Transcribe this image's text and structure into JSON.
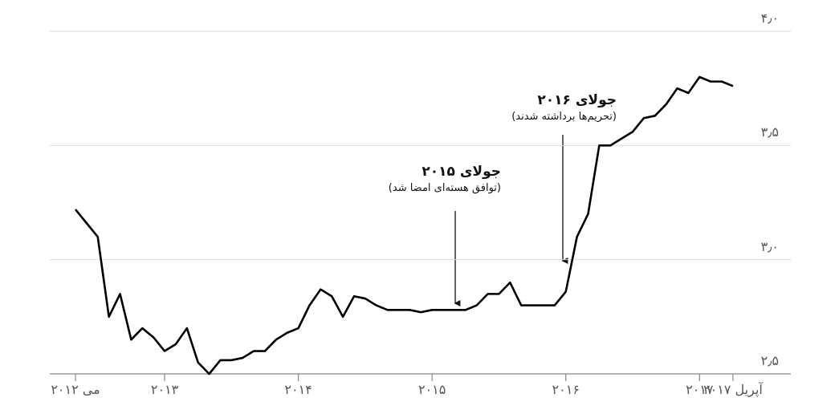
{
  "chart_data": {
    "type": "line",
    "x": [
      "2012-05",
      "2012-06",
      "2012-07",
      "2012-08",
      "2012-09",
      "2012-10",
      "2012-11",
      "2012-12",
      "2013-01",
      "2013-02",
      "2013-03",
      "2013-04",
      "2013-05",
      "2013-06",
      "2013-07",
      "2013-08",
      "2013-09",
      "2013-10",
      "2013-11",
      "2013-12",
      "2014-01",
      "2014-02",
      "2014-03",
      "2014-04",
      "2014-05",
      "2014-06",
      "2014-07",
      "2014-08",
      "2014-09",
      "2014-10",
      "2014-11",
      "2014-12",
      "2015-01",
      "2015-02",
      "2015-03",
      "2015-04",
      "2015-05",
      "2015-06",
      "2015-07",
      "2015-08",
      "2015-09",
      "2015-10",
      "2015-11",
      "2015-12",
      "2016-01",
      "2016-02",
      "2016-03",
      "2016-04",
      "2016-05",
      "2016-06",
      "2016-07",
      "2016-08",
      "2016-09",
      "2016-10",
      "2016-11",
      "2016-12",
      "2017-01",
      "2017-02",
      "2017-03",
      "2017-04"
    ],
    "series": [
      {
        "color": "#000000",
        "values": [
          3.22,
          3.16,
          3.1,
          2.75,
          2.85,
          2.65,
          2.7,
          2.66,
          2.6,
          2.63,
          2.7,
          2.55,
          2.5,
          2.56,
          2.56,
          2.57,
          2.6,
          2.6,
          2.65,
          2.68,
          2.7,
          2.8,
          2.87,
          2.84,
          2.75,
          2.84,
          2.83,
          2.8,
          2.78,
          2.78,
          2.78,
          2.77,
          2.78,
          2.78,
          2.78,
          2.78,
          2.8,
          2.85,
          2.85,
          2.9,
          2.8,
          2.8,
          2.8,
          2.8,
          2.86,
          3.1,
          3.2,
          3.5,
          3.5,
          3.53,
          3.56,
          3.62,
          3.63,
          3.68,
          3.75,
          3.73,
          3.8,
          3.78,
          3.78,
          3.76
        ]
      }
    ],
    "ylim": [
      2.5,
      4.0
    ],
    "yticks": [
      {
        "value": 2.5,
        "label": "۲٫۵"
      },
      {
        "value": 3.0,
        "label": "۳٫۰"
      },
      {
        "value": 3.5,
        "label": "۳٫۵"
      },
      {
        "value": 4.0,
        "label": "۴٫۰"
      }
    ],
    "xticks": [
      {
        "value": "2012-05",
        "label": "می ۲۰۱۲"
      },
      {
        "value": "2013-01",
        "label": "۲۰۱۳"
      },
      {
        "value": "2014-01",
        "label": "۲۰۱۴"
      },
      {
        "value": "2015-01",
        "label": "۲۰۱۵"
      },
      {
        "value": "2016-01",
        "label": "۲۰۱۶"
      },
      {
        "value": "2017-01",
        "label": "۲۰۱۷"
      },
      {
        "value": "2017-04",
        "label": "آپریل ۲۰۱۷"
      }
    ],
    "grid": true,
    "annotations": [
      {
        "title": "جولای ۲۰۱۵",
        "text": "(توافق هسته‌ای امضا شد)"
      },
      {
        "title": "جولای ۲۰۱۶",
        "text": "(تحریم‌ها برداشته شدند)"
      }
    ]
  }
}
